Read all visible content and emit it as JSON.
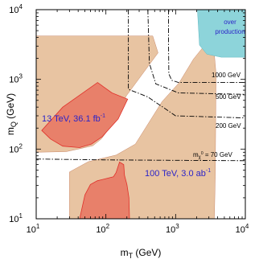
{
  "chart_data": {
    "type": "area",
    "xlabel": {
      "main": "m",
      "sub": "T",
      "rest": " (GeV)"
    },
    "ylabel": {
      "main": "m",
      "sub": "Q",
      "rest": " (GeV)"
    },
    "x_scale": "log",
    "y_scale": "log",
    "xlim": [
      10,
      10000
    ],
    "ylim": [
      10,
      10000
    ],
    "x_ticks": [
      {
        "base": "10",
        "exp": "1",
        "value": 10
      },
      {
        "base": "10",
        "exp": "2",
        "value": 100
      },
      {
        "base": "10",
        "exp": "3",
        "value": 1000
      },
      {
        "base": "10",
        "exp": "4",
        "value": 10000
      }
    ],
    "y_ticks": [
      {
        "base": "10",
        "exp": "1",
        "value": 10
      },
      {
        "base": "10",
        "exp": "2",
        "value": 100
      },
      {
        "base": "10",
        "exp": "3",
        "value": 1000
      },
      {
        "base": "10",
        "exp": "4",
        "value": 10000
      }
    ],
    "colors": {
      "reach_100tev": "#e8c4a2",
      "reach_13tev": "#e8806a",
      "overproduction": "#8dd4da",
      "region_edge": "#c9886a",
      "lumi_text": "#2b24c8"
    },
    "regions": [
      {
        "id": "reach-100tev",
        "color": "#e8c4a2",
        "points": [
          [
            10,
            4200
          ],
          [
            470,
            4200
          ],
          [
            560,
            2400
          ],
          [
            195,
            575
          ],
          [
            148,
            290
          ],
          [
            86,
            140
          ],
          [
            65,
            112
          ],
          [
            46,
            103
          ],
          [
            27,
            92
          ],
          [
            10,
            90
          ]
        ]
      },
      {
        "id": "reach-100tev-lower",
        "color": "#e8c4a2",
        "points": [
          [
            30,
            10
          ],
          [
            30,
            47
          ],
          [
            56,
            66
          ],
          [
            140,
            82
          ],
          [
            265,
            118
          ],
          [
            640,
            480
          ],
          [
            1130,
            900
          ],
          [
            1800,
            1950
          ],
          [
            3400,
            4300
          ],
          [
            3800,
            1200
          ],
          [
            3700,
            40
          ],
          [
            3600,
            10
          ]
        ]
      },
      {
        "id": "reach-13tev-upper",
        "color": "#e8806a",
        "points": [
          [
            12,
            185
          ],
          [
            24,
            400
          ],
          [
            76,
            900
          ],
          [
            122,
            640
          ],
          [
            205,
            520
          ],
          [
            150,
            270
          ],
          [
            88,
            150
          ],
          [
            62,
            118
          ],
          [
            42,
            105
          ],
          [
            24,
            110
          ],
          [
            16,
            140
          ]
        ]
      },
      {
        "id": "reach-13tev-lower",
        "color": "#e8806a",
        "points": [
          [
            42,
            10
          ],
          [
            50,
            22
          ],
          [
            60,
            31
          ],
          [
            75,
            35
          ],
          [
            128,
            40
          ],
          [
            140,
            46
          ],
          [
            157,
            65
          ],
          [
            180,
            60
          ],
          [
            185,
            42
          ],
          [
            200,
            31
          ],
          [
            214,
            20
          ],
          [
            218,
            10
          ]
        ]
      },
      {
        "id": "overproduction-region",
        "color": "#8dd4da",
        "points": [
          [
            2050,
            10000
          ],
          [
            2200,
            3100
          ],
          [
            2800,
            2300
          ],
          [
            4500,
            2080
          ],
          [
            10000,
            2080
          ],
          [
            10000,
            10000
          ]
        ]
      }
    ],
    "contours": [
      {
        "label": {
          "main": "1000 GeV",
          "sub": ""
        },
        "points": [
          [
            790,
            10000
          ],
          [
            790,
            3400
          ],
          [
            800,
            1200
          ],
          [
            880,
            970
          ],
          [
            1100,
            900
          ],
          [
            10000,
            900
          ]
        ]
      },
      {
        "label": {
          "main": "500 GeV",
          "sub": ""
        },
        "points": [
          [
            400,
            10000
          ],
          [
            420,
            1700
          ],
          [
            520,
            860
          ],
          [
            1100,
            640
          ],
          [
            10000,
            610
          ]
        ]
      },
      {
        "label": {
          "main": "200 GeV",
          "sub": ""
        },
        "points": [
          [
            210,
            10000
          ],
          [
            210,
            720
          ],
          [
            400,
            560
          ],
          [
            1000,
            300
          ],
          [
            10000,
            280
          ]
        ]
      },
      {
        "label": {
          "main": "= 70 GeV",
          "sub": "m_χ⁰",
          "prefix": "m",
          "sub_prefix": "χ₁"
        },
        "points": [
          [
            10,
            72
          ],
          [
            100,
            70
          ],
          [
            1000,
            69
          ],
          [
            10000,
            68
          ]
        ]
      }
    ],
    "annotations": {
      "overproduction": [
        "over",
        "production"
      ],
      "lumi_13": {
        "text": "13 TeV, 36.1 fb",
        "sup": "-1"
      },
      "lumi_100": {
        "text": "100 TeV, 3.0 ab",
        "sup": "-1"
      },
      "mass_labels": [
        "1000 GeV",
        "500 GeV",
        "200 GeV"
      ],
      "neutralino_label": {
        "m": "m",
        "sub": "χ",
        "sub2": "1",
        "sup": "0",
        "rest": " = 70 GeV"
      }
    }
  }
}
